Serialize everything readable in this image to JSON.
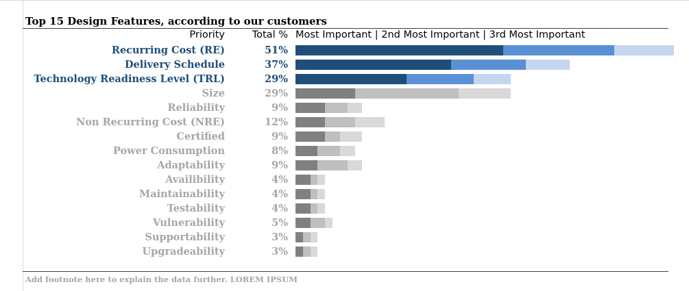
{
  "chart_data": {
    "type": "bar",
    "orientation": "horizontal",
    "stacked": true,
    "title": "Top 15 Design Features, according to our customers",
    "headers": {
      "priority": "Priority",
      "total": "Total %",
      "segments": "Most Important | 2nd Most Important | 3rd Most Important"
    },
    "categories": [
      "Recurring Cost (RE)",
      "Delivery Schedule",
      "Technology Readiness Level (TRL)",
      "Size",
      "Reliability",
      "Non Recurring Cost (NRE)",
      "Certified",
      "Power Consumption",
      "Adaptability",
      "Availibility",
      "Maintainability",
      "Testability",
      "Vulnerability",
      "Supportability",
      "Upgradeability"
    ],
    "totals": [
      "51%",
      "37%",
      "29%",
      "29%",
      "9%",
      "12%",
      "9%",
      "8%",
      "9%",
      "4%",
      "4%",
      "4%",
      "5%",
      "3%",
      "3%"
    ],
    "highlighted_count": 3,
    "series": [
      {
        "name": "Most Important",
        "values": [
          28,
          21,
          15,
          8,
          4,
          4,
          4,
          3,
          3,
          2,
          2,
          2,
          2,
          1,
          1
        ]
      },
      {
        "name": "2nd Most Important",
        "values": [
          15,
          10,
          9,
          14,
          3,
          4,
          2,
          3,
          4,
          1,
          1,
          1,
          2,
          1,
          1
        ]
      },
      {
        "name": "3rd Most Important",
        "values": [
          8,
          6,
          5,
          7,
          2,
          4,
          3,
          2,
          2,
          1,
          1,
          1,
          1,
          1,
          1
        ]
      }
    ],
    "xlim": [
      0,
      51
    ],
    "grid": false,
    "legend": "header"
  },
  "colors": {
    "highlight_label": "#1f4e79",
    "muted_label": "#a6a6a6",
    "highlight_segments": [
      "#1f4e79",
      "#5b91d4",
      "#c5d6f0"
    ],
    "muted_segments": [
      "#808080",
      "#bfbfbf",
      "#d9d9d9"
    ]
  },
  "footnote": "Add footnote here to explain the data further. LOREM IPSUM"
}
